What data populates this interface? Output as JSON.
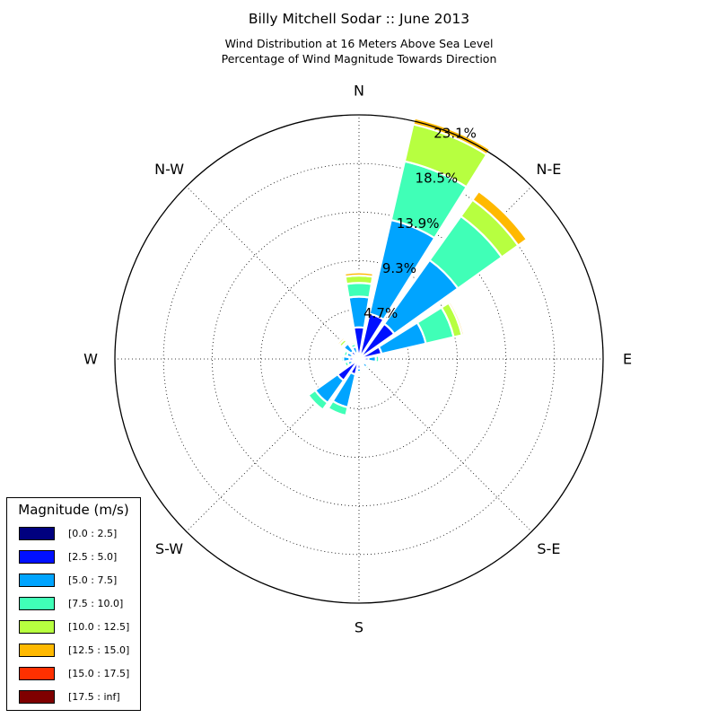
{
  "title": "Billy Mitchell Sodar :: June 2013",
  "subtitle_lines": [
    "Wind Distribution at 16 Meters Above Sea Level",
    "Percentage of Wind Magnitude Towards Direction"
  ],
  "legend": {
    "title": "Magnitude (m/s)",
    "items": [
      {
        "label": "[0.0 : 2.5]",
        "color": "#00007f"
      },
      {
        "label": "[2.5 : 5.0]",
        "color": "#0010ff"
      },
      {
        "label": "[5.0 : 7.5]",
        "color": "#00a4ff"
      },
      {
        "label": "[7.5 : 10.0]",
        "color": "#40ffb7"
      },
      {
        "label": "[10.0 : 12.5]",
        "color": "#b7ff40"
      },
      {
        "label": "[12.5 : 15.0]",
        "color": "#ffb900"
      },
      {
        "label": "[15.0 : 17.5]",
        "color": "#ff3000"
      },
      {
        "label": "[17.5 : inf]",
        "color": "#7f0000"
      }
    ]
  },
  "chart_data": {
    "type": "windrose",
    "direction_labels": [
      "N",
      "N-E",
      "E",
      "S-E",
      "S",
      "S-W",
      "W",
      "N-W"
    ],
    "radial_tick_labels": [
      "4.7%",
      "9.3%",
      "13.9%",
      "18.5%",
      "23.1%"
    ],
    "radial_ticks": [
      4.7,
      9.3,
      13.9,
      18.5,
      23.1
    ],
    "rmax": 23.1,
    "series_names": [
      "[0.0 : 2.5]",
      "[2.5 : 5.0]",
      "[5.0 : 7.5]",
      "[7.5 : 10.0]",
      "[10.0 : 12.5]",
      "[12.5 : 15.0]",
      "[15.0 : 17.5]",
      "[17.5 : inf]"
    ],
    "series_colors": [
      "#00007f",
      "#0010ff",
      "#00a4ff",
      "#40ffb7",
      "#b7ff40",
      "#ffb900",
      "#ff3000",
      "#7f0000"
    ],
    "directions_deg": [
      0,
      22.5,
      45,
      67.5,
      90,
      112.5,
      135,
      157.5,
      180,
      202.5,
      225,
      247.5,
      270,
      292.5,
      315,
      337.5
    ],
    "bins": [
      [
        0.2,
        2.8,
        2.9,
        1.3,
        0.7,
        0.3,
        0,
        0
      ],
      [
        0.2,
        4.2,
        9.1,
        5.7,
        3.6,
        0.6,
        0,
        0
      ],
      [
        0.2,
        3.9,
        7.4,
        5.1,
        1.9,
        1.0,
        0,
        0
      ],
      [
        0.2,
        2.0,
        4.3,
        2.7,
        0.8,
        0.2,
        0,
        0
      ],
      [
        0.2,
        0.7,
        0.7,
        0.3,
        0,
        0,
        0,
        0
      ],
      [
        0.1,
        0.3,
        0.2,
        0.1,
        0,
        0,
        0,
        0
      ],
      [
        0.1,
        0.5,
        0.4,
        0.2,
        0,
        0,
        0,
        0
      ],
      [
        0.1,
        0.4,
        0.2,
        0.1,
        0,
        0,
        0,
        0
      ],
      [
        0.1,
        0.8,
        0.3,
        0.2,
        0,
        0,
        0,
        0
      ],
      [
        0.2,
        1.3,
        3.2,
        0.8,
        0,
        0,
        0,
        0
      ],
      [
        0.2,
        2.3,
        2.6,
        0.8,
        0,
        0,
        0,
        0
      ],
      [
        0.1,
        0.6,
        0.4,
        0.3,
        0,
        0,
        0,
        0
      ],
      [
        0.1,
        0.8,
        0.6,
        0.2,
        0,
        0,
        0,
        0
      ],
      [
        0.1,
        0.6,
        0.5,
        0.3,
        0.1,
        0,
        0,
        0
      ],
      [
        0.1,
        0.8,
        0.9,
        0.2,
        0.3,
        0.2,
        0,
        0
      ],
      [
        0.1,
        0.5,
        0.6,
        0.3,
        0.2,
        0.1,
        0,
        0
      ]
    ]
  }
}
